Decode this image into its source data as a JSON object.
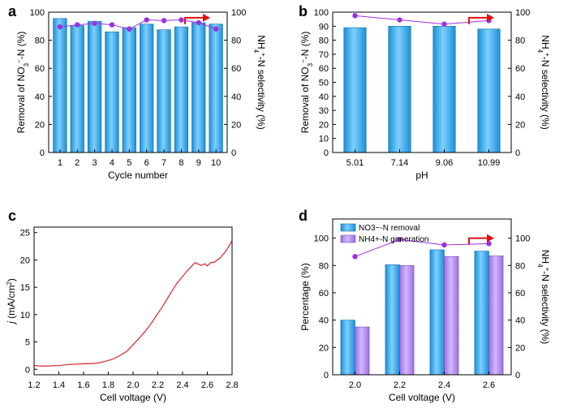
{
  "chart_data": [
    {
      "panel": "a",
      "type": "bar",
      "xlabel": "Cycle number",
      "ylabel": "Removal of NO3−-N (%)",
      "ylabel_right": "NH4+-N selectivity (%)",
      "categories": [
        "1",
        "2",
        "3",
        "4",
        "5",
        "6",
        "7",
        "8",
        "9",
        "10"
      ],
      "series": [
        {
          "values": [
            95.5,
            90.5,
            93.5,
            86,
            89,
            91.5,
            87.5,
            89.5,
            92.5,
            91.5
          ],
          "axis": "left"
        },
        {
          "values": [
            89.5,
            91,
            92,
            91,
            88,
            94.5,
            94,
            94.5,
            92.5,
            88
          ],
          "axis": "right"
        }
      ],
      "ylim": [
        0,
        100
      ],
      "ylim_right": [
        0,
        100
      ],
      "yticks": [
        0,
        20,
        40,
        60,
        80,
        100
      ],
      "yticks_right": [
        0,
        20,
        40,
        60,
        80,
        100
      ]
    },
    {
      "panel": "b",
      "type": "bar",
      "xlabel": "pH",
      "ylabel": "Removal of NO3−-N (%)",
      "ylabel_right": "NH4+-N selectivity (%)",
      "categories": [
        "5.01",
        "7.14",
        "9.06",
        "10.99"
      ],
      "series": [
        {
          "values": [
            89,
            90,
            90,
            88
          ],
          "axis": "left"
        },
        {
          "values": [
            97.5,
            94.5,
            91.5,
            94
          ],
          "axis": "right"
        }
      ],
      "ylim": [
        0,
        100
      ],
      "ylim_right": [
        0,
        100
      ],
      "yticks": [
        0,
        10,
        20,
        30,
        40,
        50,
        60,
        70,
        80,
        90,
        100
      ],
      "yticks_right": [
        0,
        20,
        40,
        60,
        80,
        100
      ]
    },
    {
      "panel": "c",
      "type": "line",
      "xlabel": "Cell voltage (V)",
      "ylabel": "j (mA/cm2)",
      "x": [
        1.2,
        1.25,
        1.3,
        1.4,
        1.5,
        1.6,
        1.7,
        1.75,
        1.8,
        1.85,
        1.9,
        1.95,
        2.0,
        2.05,
        2.1,
        2.15,
        2.2,
        2.25,
        2.3,
        2.35,
        2.4,
        2.45,
        2.5,
        2.53,
        2.55,
        2.58,
        2.6,
        2.63,
        2.65,
        2.7,
        2.75,
        2.8
      ],
      "series": [
        {
          "values": [
            0.7,
            0.6,
            0.6,
            0.7,
            0.9,
            1.0,
            1.1,
            1.3,
            1.6,
            2.0,
            2.6,
            3.3,
            4.5,
            5.7,
            7.0,
            8.5,
            10.2,
            11.9,
            13.8,
            15.6,
            17.0,
            18.3,
            19.5,
            19.2,
            19.0,
            19.3,
            18.9,
            19.6,
            19.5,
            20.3,
            21.6,
            23.5
          ]
        }
      ],
      "xlim": [
        1.2,
        2.8
      ],
      "ylim": [
        -1,
        26
      ],
      "xticks": [
        "1.2",
        "1.4",
        "1.6",
        "1.8",
        "2.0",
        "2.2",
        "2.4",
        "2.6",
        "2.8"
      ],
      "yticks": [
        0,
        5,
        10,
        15,
        20,
        25
      ]
    },
    {
      "panel": "d",
      "type": "bar",
      "xlabel": "Cell voltage (V)",
      "ylabel": "Percentage (%)",
      "ylabel_right": "NH4+-N selectivity (%)",
      "categories": [
        "2.0",
        "2.2",
        "2.4",
        "2.6"
      ],
      "series": [
        {
          "name": "NO3−-N removal",
          "values": [
            40,
            80.5,
            91.5,
            90.5
          ],
          "axis": "left"
        },
        {
          "name": "NH4+-N generation",
          "values": [
            35,
            80,
            86.5,
            87
          ],
          "axis": "left"
        },
        {
          "values": [
            86.5,
            99,
            95,
            96
          ],
          "axis": "right"
        }
      ],
      "ylim": [
        0,
        114
      ],
      "ylim_right": [
        0,
        114
      ],
      "yticks": [
        0,
        20,
        40,
        60,
        80,
        100
      ],
      "yticks_right": [
        0,
        20,
        40,
        60,
        80,
        100
      ],
      "legend": "top-left"
    }
  ],
  "colors": {
    "bar_blue": "#2e9fe0",
    "bar_purple": "#a879e6",
    "dot_purple": "#9b30e0",
    "line_red": "#d62828",
    "arrow_red": "#e01010"
  }
}
